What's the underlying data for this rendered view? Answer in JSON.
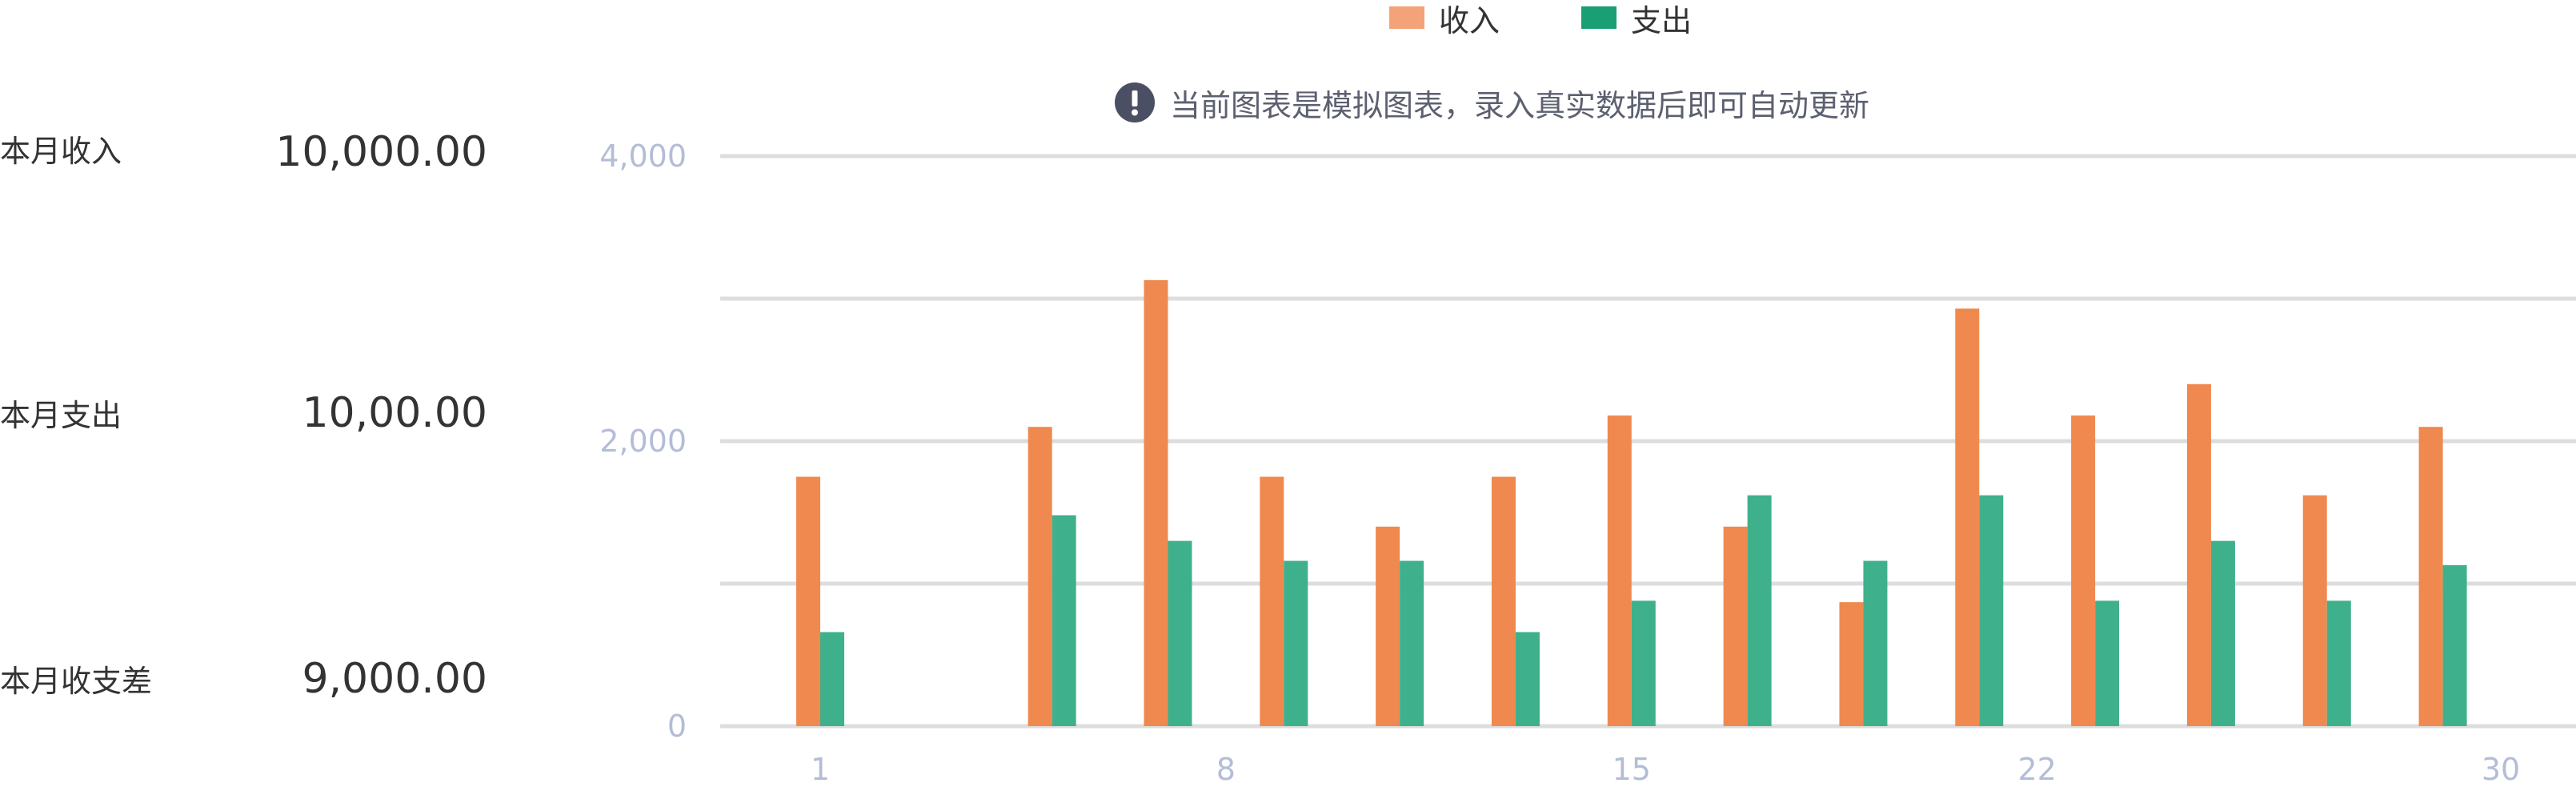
{
  "stats": [
    {
      "label": "本月收入",
      "value": "10,000.00"
    },
    {
      "label": "本月支出",
      "value": "10,00.00"
    },
    {
      "label": "本月收支差",
      "value": "9,000.00"
    }
  ],
  "notice": {
    "text": "当前图表是模拟图表，录入真实数据后即可自动更新",
    "icon": "exclamation-circle-icon"
  },
  "colors": {
    "income": "#f0894f",
    "expense": "#3fb08c",
    "income_legend": "#f4a277",
    "expense_legend": "#1a9e74",
    "grid": "#dddddd",
    "axis_text": "#b4bdd6"
  },
  "chart_data": {
    "type": "bar",
    "x": [
      1,
      5,
      7,
      9,
      11,
      13,
      15,
      17,
      19,
      21,
      23,
      25,
      27,
      29
    ],
    "series": [
      {
        "name": "收入",
        "values": [
          1750,
          2100,
          3130,
          1750,
          1400,
          1750,
          2180,
          1400,
          870,
          2930,
          2180,
          2400,
          1620,
          2100
        ]
      },
      {
        "name": "支出",
        "values": [
          660,
          1480,
          1300,
          1160,
          1160,
          660,
          880,
          1620,
          1160,
          1620,
          880,
          1300,
          880,
          1130
        ]
      }
    ],
    "x_ticks": [
      "1",
      "8",
      "15",
      "22",
      "30"
    ],
    "x_tick_positions": [
      1,
      8,
      15,
      22,
      30
    ],
    "y_ticks": [
      "0",
      "2,000",
      "4,000"
    ],
    "y_tick_values": [
      0,
      2000,
      4000
    ],
    "ylim": [
      0,
      4000
    ],
    "grid_values": [
      0,
      1000,
      2000,
      3000,
      4000
    ],
    "grid": true,
    "legend_position": "top"
  }
}
